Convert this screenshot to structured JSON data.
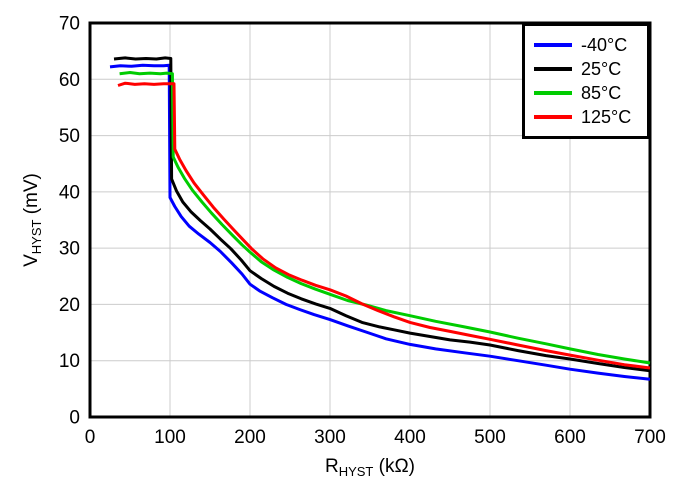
{
  "colors": {
    "background": "#ffffff",
    "grid": "#cccccc",
    "axis": "#000000",
    "text": "#000000"
  },
  "chart_data": {
    "type": "line",
    "xlabel": {
      "main": "R",
      "sub": "HYST",
      "unit": " (kΩ)"
    },
    "ylabel": {
      "main": "V",
      "sub": "HYST",
      "unit": " (mV)"
    },
    "xlim": [
      0,
      700
    ],
    "ylim": [
      0,
      70
    ],
    "xticks": [
      0,
      100,
      200,
      300,
      400,
      500,
      600,
      700
    ],
    "yticks": [
      0,
      10,
      20,
      30,
      40,
      50,
      60,
      70
    ],
    "grid": true,
    "legend_position": "top-right",
    "series": [
      {
        "name": "-40°C",
        "color": "#0000ff",
        "points": [
          [
            25,
            62.2
          ],
          [
            38,
            62.4
          ],
          [
            52,
            62.3
          ],
          [
            66,
            62.5
          ],
          [
            80,
            62.4
          ],
          [
            92,
            62.4
          ],
          [
            99,
            62.5
          ],
          [
            100,
            39.0
          ],
          [
            106,
            37.4
          ],
          [
            114,
            35.6
          ],
          [
            124,
            33.9
          ],
          [
            136,
            32.5
          ],
          [
            150,
            31.0
          ],
          [
            163,
            29.4
          ],
          [
            177,
            27.4
          ],
          [
            190,
            25.4
          ],
          [
            200,
            23.6
          ],
          [
            212,
            22.4
          ],
          [
            228,
            21.2
          ],
          [
            245,
            20.0
          ],
          [
            262,
            19.1
          ],
          [
            280,
            18.2
          ],
          [
            300,
            17.3
          ],
          [
            322,
            16.2
          ],
          [
            345,
            15.1
          ],
          [
            370,
            13.9
          ],
          [
            400,
            12.9
          ],
          [
            432,
            12.1
          ],
          [
            468,
            11.4
          ],
          [
            500,
            10.8
          ],
          [
            535,
            10.0
          ],
          [
            570,
            9.2
          ],
          [
            600,
            8.5
          ],
          [
            635,
            7.8
          ],
          [
            668,
            7.2
          ],
          [
            700,
            6.7
          ]
        ]
      },
      {
        "name": "25°C",
        "color": "#000000",
        "points": [
          [
            30,
            63.6
          ],
          [
            44,
            63.8
          ],
          [
            57,
            63.6
          ],
          [
            70,
            63.7
          ],
          [
            83,
            63.6
          ],
          [
            94,
            63.8
          ],
          [
            101,
            63.7
          ],
          [
            102,
            42.3
          ],
          [
            108,
            40.2
          ],
          [
            116,
            38.2
          ],
          [
            126,
            36.5
          ],
          [
            138,
            34.9
          ],
          [
            150,
            33.4
          ],
          [
            163,
            31.6
          ],
          [
            176,
            29.9
          ],
          [
            189,
            27.9
          ],
          [
            200,
            26.0
          ],
          [
            214,
            24.6
          ],
          [
            230,
            23.2
          ],
          [
            247,
            22.0
          ],
          [
            264,
            21.0
          ],
          [
            282,
            20.1
          ],
          [
            300,
            19.3
          ],
          [
            320,
            18.0
          ],
          [
            340,
            16.8
          ],
          [
            362,
            16.0
          ],
          [
            380,
            15.5
          ],
          [
            400,
            14.9
          ],
          [
            425,
            14.3
          ],
          [
            450,
            13.7
          ],
          [
            475,
            13.3
          ],
          [
            500,
            12.8
          ],
          [
            535,
            11.8
          ],
          [
            570,
            10.9
          ],
          [
            600,
            10.3
          ],
          [
            635,
            9.5
          ],
          [
            668,
            8.8
          ],
          [
            700,
            8.2
          ]
        ]
      },
      {
        "name": "85°C",
        "color": "#00cc00",
        "points": [
          [
            37,
            61.0
          ],
          [
            50,
            61.2
          ],
          [
            62,
            61.0
          ],
          [
            75,
            61.1
          ],
          [
            88,
            61.0
          ],
          [
            96,
            61.1
          ],
          [
            103,
            61.0
          ],
          [
            104,
            46.2
          ],
          [
            110,
            44.4
          ],
          [
            118,
            42.4
          ],
          [
            128,
            40.3
          ],
          [
            140,
            38.2
          ],
          [
            152,
            36.2
          ],
          [
            165,
            34.2
          ],
          [
            178,
            32.3
          ],
          [
            190,
            30.6
          ],
          [
            200,
            29.3
          ],
          [
            214,
            27.6
          ],
          [
            230,
            26.1
          ],
          [
            247,
            24.8
          ],
          [
            264,
            23.7
          ],
          [
            282,
            22.7
          ],
          [
            300,
            21.8
          ],
          [
            322,
            20.7
          ],
          [
            345,
            19.9
          ],
          [
            370,
            18.9
          ],
          [
            400,
            18.0
          ],
          [
            432,
            17.0
          ],
          [
            468,
            16.0
          ],
          [
            500,
            15.1
          ],
          [
            535,
            14.0
          ],
          [
            570,
            13.0
          ],
          [
            600,
            12.1
          ],
          [
            635,
            11.1
          ],
          [
            668,
            10.3
          ],
          [
            700,
            9.6
          ]
        ]
      },
      {
        "name": "125°C",
        "color": "#ff0000",
        "points": [
          [
            35,
            58.9
          ],
          [
            44,
            59.3
          ],
          [
            56,
            59.1
          ],
          [
            68,
            59.2
          ],
          [
            80,
            59.1
          ],
          [
            92,
            59.2
          ],
          [
            105,
            59.2
          ],
          [
            106,
            47.6
          ],
          [
            112,
            45.8
          ],
          [
            120,
            43.8
          ],
          [
            130,
            41.6
          ],
          [
            142,
            39.4
          ],
          [
            154,
            37.3
          ],
          [
            167,
            35.2
          ],
          [
            180,
            33.2
          ],
          [
            192,
            31.4
          ],
          [
            202,
            29.9
          ],
          [
            216,
            28.1
          ],
          [
            232,
            26.5
          ],
          [
            248,
            25.3
          ],
          [
            265,
            24.3
          ],
          [
            282,
            23.4
          ],
          [
            300,
            22.6
          ],
          [
            320,
            21.5
          ],
          [
            340,
            20.1
          ],
          [
            360,
            18.9
          ],
          [
            380,
            17.8
          ],
          [
            400,
            16.8
          ],
          [
            425,
            15.9
          ],
          [
            450,
            15.2
          ],
          [
            475,
            14.5
          ],
          [
            500,
            13.8
          ],
          [
            535,
            12.8
          ],
          [
            570,
            11.8
          ],
          [
            600,
            11.0
          ],
          [
            635,
            10.1
          ],
          [
            668,
            9.3
          ],
          [
            700,
            8.7
          ]
        ]
      }
    ]
  }
}
